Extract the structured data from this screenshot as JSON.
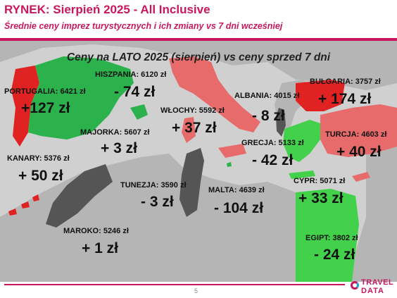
{
  "header": {
    "title": "RYNEK: Sierpień 2025 - All Inclusive",
    "subtitle": "Średnie ceny imprez turystycznych i ich zmiany vs 7 dni wcześniej"
  },
  "map": {
    "title": "Ceny na LATO 2025 (sierpień) vs ceny sprzed 7 dni",
    "colors": {
      "increase": "#2bb24c",
      "large_increase": "#e02222",
      "decrease": "#e86b6b",
      "neutral": "#555555",
      "sea": "#d0d0d0",
      "land": "#b5b5b5"
    },
    "destinations": [
      {
        "id": "portugalia",
        "label": "PORTUGALIA: 6421 zł",
        "change": "+127 zł"
      },
      {
        "id": "hiszpania",
        "label": "HISZPANIA: 6120 zł",
        "change": "- 74 zł"
      },
      {
        "id": "majorka",
        "label": "MAJORKA: 5607 zł",
        "change": "+ 3 zł"
      },
      {
        "id": "wlochy",
        "label": "WŁOCHY: 5592 zł",
        "change": "+ 37 zł"
      },
      {
        "id": "albania",
        "label": "ALBANIA: 4015 zł",
        "change": "- 8 zł"
      },
      {
        "id": "bulgaria",
        "label": "BUŁGARIA: 3757 zł",
        "change": "+ 174 zł"
      },
      {
        "id": "turcja",
        "label": "TURCJA: 4603 zł",
        "change": "+ 40 zł"
      },
      {
        "id": "grecja",
        "label": "GRECJA: 5133 zł",
        "change": "- 42 zł"
      },
      {
        "id": "kanary",
        "label": "KANARY: 5376 zł",
        "change": "+ 50 zł"
      },
      {
        "id": "tunezja",
        "label": "TUNEZJA: 3590 zł",
        "change": "- 3 zł"
      },
      {
        "id": "malta",
        "label": "MALTA: 4639 zł",
        "change": "- 104 zł"
      },
      {
        "id": "cypr",
        "label": "CYPR: 5071 zł",
        "change": "+ 33 zł"
      },
      {
        "id": "maroko",
        "label": "MAROKO: 5246 zł",
        "change": "+ 1 zł"
      },
      {
        "id": "egipt",
        "label": "EGIPT: 3802 zł",
        "change": "- 24 zł"
      }
    ]
  },
  "footer": {
    "page_number": "5",
    "logo_line1": "TRAVEL",
    "logo_line2": "DATA"
  }
}
